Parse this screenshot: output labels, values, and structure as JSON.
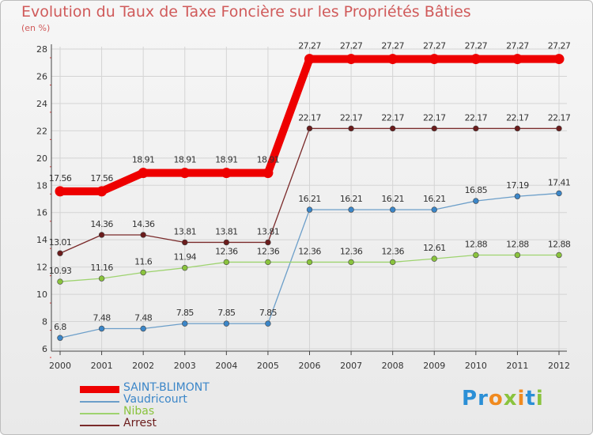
{
  "title": "Evolution du Taux de Taxe Foncière sur les Propriétés Bâties",
  "subtitle": "(en %)",
  "logo": {
    "text": "Proxiti",
    "letters": [
      "P",
      "r",
      "o",
      "x",
      "i",
      "t",
      "i"
    ],
    "colors": [
      "#2b8fd6",
      "#2b8fd6",
      "#f08a1f",
      "#8ac33d",
      "#f08a1f",
      "#2b8fd6",
      "#8ac33d"
    ]
  },
  "chart_data": {
    "type": "line",
    "title": "Evolution du Taux de Taxe Foncière sur les Propriétés Bâties",
    "ylabel": "(en %)",
    "xlabel": "",
    "ylim": [
      6,
      28
    ],
    "yticks": [
      6,
      8,
      10,
      12,
      14,
      16,
      18,
      20,
      22,
      24,
      26,
      28
    ],
    "x": [
      "2000",
      "2001",
      "2002",
      "2003",
      "2004",
      "2005",
      "2006",
      "2007",
      "2008",
      "2009",
      "2010",
      "2011",
      "2012"
    ],
    "grid": true,
    "legend_position": "bottom-left",
    "series": [
      {
        "name": "SAINT-BLIMONT",
        "color": "#ee0000",
        "thick": true,
        "values": [
          17.56,
          17.56,
          18.91,
          18.91,
          18.91,
          18.91,
          27.27,
          27.27,
          27.27,
          27.27,
          27.27,
          27.27,
          27.27
        ],
        "labels": [
          "17.56",
          "17.56",
          "18.91",
          "18.91",
          "18.91",
          "18.91",
          "27.27",
          "27.27",
          "27.27",
          "27.27",
          "27.27",
          "27.27",
          "27.27"
        ]
      },
      {
        "name": "Vaudricourt",
        "color": "#6b9ec9",
        "marker": "#3b86c8",
        "values": [
          6.8,
          7.48,
          7.48,
          7.85,
          7.85,
          7.85,
          16.21,
          16.21,
          16.21,
          16.21,
          16.85,
          17.19,
          17.41
        ],
        "labels": [
          "6.8",
          "7.48",
          "7.48",
          "7.85",
          "7.85",
          "7.85",
          "16.21",
          "16.21",
          "16.21",
          "16.21",
          "16.85",
          "17.19",
          "17.41"
        ]
      },
      {
        "name": "Nibas",
        "color": "#9ed36f",
        "marker": "#8ac33d",
        "values": [
          10.93,
          11.16,
          11.6,
          11.94,
          12.36,
          12.36,
          12.36,
          12.36,
          12.36,
          12.61,
          12.88,
          12.88,
          12.88
        ],
        "labels": [
          "10.93",
          "11.16",
          "11.6",
          "11.94",
          "12.36",
          "12.36",
          "12.36",
          "12.36",
          "12.36",
          "12.61",
          "12.88",
          "12.88",
          "12.88"
        ]
      },
      {
        "name": "Arrest",
        "color": "#7a2a2a",
        "marker": "#6b1c1c",
        "values": [
          13.01,
          14.36,
          14.36,
          13.81,
          13.81,
          13.81,
          22.17,
          22.17,
          22.17,
          22.17,
          22.17,
          22.17,
          22.17
        ],
        "labels": [
          "13.01",
          "14.36",
          "14.36",
          "13.81",
          "13.81",
          "13.81",
          "22.17",
          "22.17",
          "22.17",
          "22.17",
          "22.17",
          "22.17",
          "22.17"
        ]
      }
    ]
  }
}
